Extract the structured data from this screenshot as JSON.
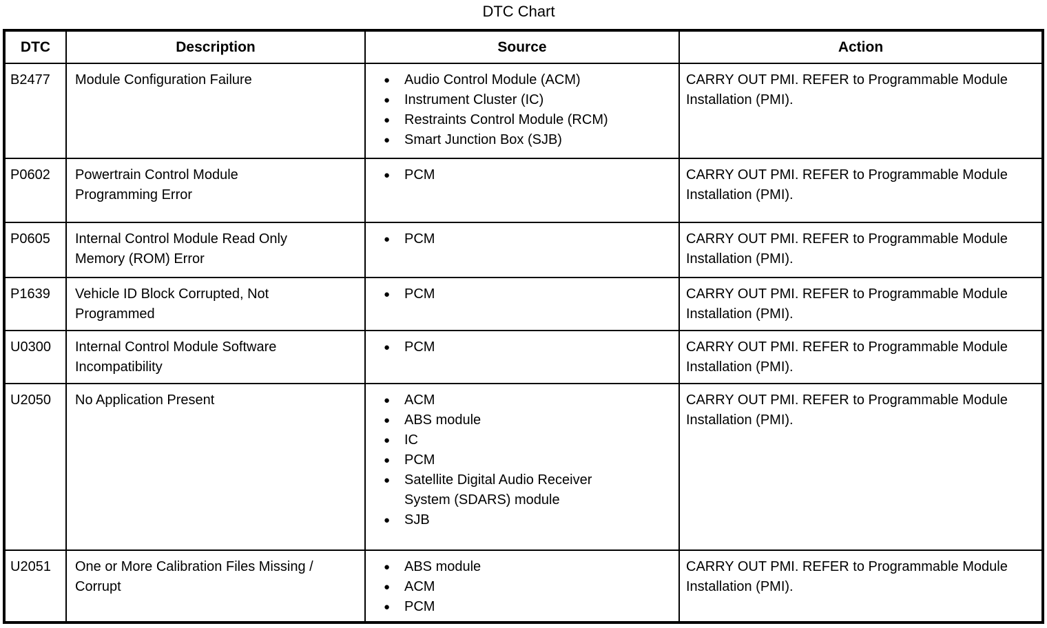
{
  "title": "DTC Chart",
  "columns": [
    "DTC",
    "Description",
    "Source",
    "Action"
  ],
  "bullet_glyph": "●",
  "colors": {
    "text": "#000000",
    "background": "#ffffff",
    "border": "#000000"
  },
  "rows": [
    {
      "dtc": "B2477",
      "description": "Module Configuration Failure",
      "sources": [
        "Audio Control Module (ACM)",
        "Instrument Cluster (IC)",
        "Restraints Control Module (RCM)",
        "Smart Junction Box (SJB)"
      ],
      "action": "CARRY OUT PMI. REFER to Programmable Module Installation (PMI)."
    },
    {
      "dtc": "P0602",
      "description": "Powertrain Control Module Programming Error",
      "sources": [
        "PCM"
      ],
      "action": "CARRY OUT PMI. REFER to Programmable Module Installation (PMI)."
    },
    {
      "dtc": "P0605",
      "description": "Internal Control Module Read Only Memory (ROM) Error",
      "sources": [
        "PCM"
      ],
      "action": "CARRY OUT PMI. REFER to Programmable Module Installation (PMI)."
    },
    {
      "dtc": "P1639",
      "description": "Vehicle ID Block Corrupted, Not Programmed",
      "sources": [
        "PCM"
      ],
      "action": "CARRY OUT PMI. REFER to Programmable Module Installation (PMI)."
    },
    {
      "dtc": "U0300",
      "description": "Internal Control Module Software Incompatibility",
      "sources": [
        "PCM"
      ],
      "action": "CARRY OUT PMI. REFER to Programmable Module Installation (PMI)."
    },
    {
      "dtc": "U2050",
      "description": "No Application Present",
      "sources": [
        "ACM",
        "ABS module",
        "IC",
        "PCM",
        "Satellite Digital Audio Receiver System (SDARS) module",
        "SJB"
      ],
      "action": "CARRY OUT PMI. REFER to Programmable Module Installation (PMI)."
    },
    {
      "dtc": "U2051",
      "description": "One or More Calibration Files Missing / Corrupt",
      "sources": [
        "ABS module",
        "ACM",
        "PCM"
      ],
      "action": "CARRY OUT PMI. REFER to Programmable Module Installation (PMI)."
    }
  ]
}
